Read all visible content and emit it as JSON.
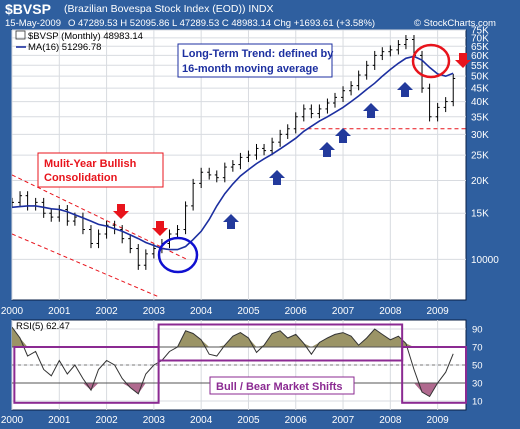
{
  "header": {
    "ticker": "$BVSP",
    "name": "(Brazilian Bovespa Stock Index (EOD))",
    "exchange": "INDX",
    "date": "15-May-2009",
    "ohlc": "O 47289.53  H 52095.86  L 47289.53  C 48983.14  Chg +1693.61 (+3.58%)",
    "watermark": "© StockCharts.com"
  },
  "colors": {
    "background": "#2f5f9f",
    "panel": "#ffffff",
    "grid": "#d8dbe0",
    "price": "#000000",
    "ma": "#1c2fa0",
    "red": "#e8141c",
    "blue_arrow": "#233a9c",
    "purple": "#8b2a92",
    "rsi_fill_upper": "#9b9466",
    "rsi_fill_lower": "#b06a8f"
  },
  "chart_data": [
    {
      "type": "line",
      "panel": "price",
      "y_scale": "log",
      "xlim": [
        2000.0,
        2009.6
      ],
      "ylim": [
        7000,
        75000
      ],
      "legend": [
        {
          "label": "$BVSP (Monthly) 48983.14"
        },
        {
          "label": "MA(16) 51296.78"
        }
      ],
      "right_ticks": [
        "75K",
        "70K",
        "65K",
        "60K",
        "55K",
        "50K",
        "45K",
        "40K",
        "35K",
        "30K",
        "25K",
        "20K",
        "15K",
        "10000"
      ],
      "x_ticks": [
        "2000",
        "2001",
        "2002",
        "2003",
        "2004",
        "2005",
        "2006",
        "2007",
        "2008",
        "2009"
      ],
      "x": [
        2000.0,
        2000.17,
        2000.33,
        2000.5,
        2000.67,
        2000.83,
        2001.0,
        2001.17,
        2001.33,
        2001.5,
        2001.67,
        2001.83,
        2002.0,
        2002.17,
        2002.33,
        2002.5,
        2002.67,
        2002.83,
        2003.0,
        2003.17,
        2003.33,
        2003.5,
        2003.67,
        2003.83,
        2004.0,
        2004.17,
        2004.33,
        2004.5,
        2004.67,
        2004.83,
        2005.0,
        2005.17,
        2005.33,
        2005.5,
        2005.67,
        2005.83,
        2006.0,
        2006.17,
        2006.33,
        2006.5,
        2006.67,
        2006.83,
        2007.0,
        2007.17,
        2007.33,
        2007.5,
        2007.67,
        2007.83,
        2008.0,
        2008.17,
        2008.33,
        2008.5,
        2008.67,
        2008.83,
        2009.0,
        2009.17,
        2009.33
      ],
      "price": [
        16500,
        17500,
        16000,
        16500,
        15000,
        14500,
        15500,
        14000,
        14500,
        13000,
        11500,
        12500,
        13500,
        13000,
        12000,
        11000,
        9500,
        10500,
        11000,
        11500,
        12500,
        13000,
        16000,
        19500,
        21500,
        21000,
        20500,
        22500,
        23000,
        24500,
        25000,
        26500,
        26000,
        28000,
        30000,
        31500,
        35000,
        37500,
        36000,
        37500,
        39500,
        41500,
        44000,
        46000,
        50500,
        55000,
        60000,
        62000,
        63000,
        66000,
        69000,
        60000,
        45000,
        35000,
        38000,
        40000,
        49000
      ],
      "ma": [
        15800,
        15900,
        16000,
        16000,
        15800,
        15600,
        15500,
        15200,
        14800,
        14400,
        14000,
        13600,
        13400,
        13100,
        12800,
        12400,
        12000,
        11600,
        11300,
        11000,
        10900,
        10900,
        11200,
        11900,
        12800,
        14200,
        16000,
        17800,
        19400,
        20800,
        22000,
        23200,
        24200,
        25200,
        26400,
        27600,
        29000,
        30800,
        32200,
        33700,
        35000,
        36400,
        38000,
        40000,
        42000,
        44500,
        47000,
        50000,
        53000,
        56000,
        58500,
        59500,
        57500,
        54000,
        51000,
        50000,
        51300
      ],
      "annotations": [
        {
          "text": "Long-Term Trend: defined by 16-month moving average"
        },
        {
          "text": "Mulit-Year Bullish Consolidation"
        }
      ]
    },
    {
      "type": "line",
      "panel": "rsi",
      "title": "RSI(5) 62.47",
      "ylim": [
        0,
        100
      ],
      "y_ticks": [
        "90",
        "70",
        "50",
        "30",
        "10"
      ],
      "x_ticks": [
        "2000",
        "2001",
        "2002",
        "2003",
        "2004",
        "2005",
        "2006",
        "2007",
        "2008",
        "2009"
      ],
      "x": [
        2000.0,
        2000.17,
        2000.33,
        2000.5,
        2000.67,
        2000.83,
        2001.0,
        2001.17,
        2001.33,
        2001.5,
        2001.67,
        2001.83,
        2002.0,
        2002.17,
        2002.33,
        2002.5,
        2002.67,
        2002.83,
        2003.0,
        2003.17,
        2003.33,
        2003.5,
        2003.67,
        2003.83,
        2004.0,
        2004.17,
        2004.33,
        2004.5,
        2004.67,
        2004.83,
        2005.0,
        2005.17,
        2005.33,
        2005.5,
        2005.67,
        2005.83,
        2006.0,
        2006.17,
        2006.33,
        2006.5,
        2006.67,
        2006.83,
        2007.0,
        2007.17,
        2007.33,
        2007.5,
        2007.67,
        2007.83,
        2008.0,
        2008.17,
        2008.33,
        2008.5,
        2008.67,
        2008.83,
        2009.0,
        2009.17,
        2009.33
      ],
      "values": [
        92,
        80,
        60,
        65,
        45,
        38,
        55,
        40,
        50,
        35,
        22,
        45,
        55,
        50,
        35,
        25,
        18,
        40,
        50,
        55,
        65,
        70,
        88,
        85,
        78,
        62,
        60,
        72,
        82,
        86,
        80,
        64,
        72,
        85,
        88,
        80,
        84,
        74,
        62,
        75,
        80,
        84,
        86,
        82,
        72,
        80,
        90,
        84,
        78,
        82,
        74,
        45,
        20,
        15,
        30,
        42,
        62.5
      ],
      "annotations": [
        {
          "text": "Bull / Bear Market Shifts"
        }
      ]
    }
  ]
}
